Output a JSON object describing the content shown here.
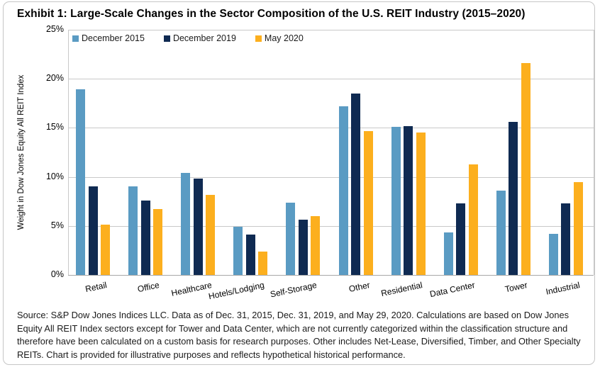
{
  "title": "Exhibit 1: Large-Scale Changes in the Sector Composition of the U.S. REIT Industry (2015–2020)",
  "footer": "Source: S&P Dow Jones Indices LLC. Data as of Dec. 31, 2015, Dec. 31, 2019, and May 29, 2020. Calculations are based on Dow Jones Equity All REIT Index sectors except for Tower and Data Center, which are not currently categorized within the classification structure and therefore have been calculated on a custom basis for research purposes. Other includes Net-Lease, Diversified, Timber, and Other Specialty REITs. Chart is provided for illustrative purposes and reflects hypothetical historical performance.",
  "chart_data": {
    "type": "bar",
    "title": "Exhibit 1: Large-Scale Changes in the Sector Composition of the U.S. REIT Industry (2015–2020)",
    "xlabel": "",
    "ylabel": "Weight in Dow Jones Equity All REIT Index",
    "ylim": [
      0,
      25
    ],
    "ytick_step": 5,
    "ytick_labels": [
      "0%",
      "5%",
      "10%",
      "15%",
      "20%",
      "25%"
    ],
    "grid": true,
    "legend_position": "top-left",
    "categories": [
      "Retail",
      "Office",
      "Healthcare",
      "Hotels/Lodging",
      "Self-Storage",
      "Other",
      "Residential",
      "Data Center",
      "Tower",
      "Industrial"
    ],
    "series": [
      {
        "name": "December 2015",
        "color": "#5A9BC3",
        "values": [
          18.9,
          9.0,
          10.4,
          4.9,
          7.4,
          17.2,
          15.1,
          4.3,
          8.6,
          4.2
        ]
      },
      {
        "name": "December 2019",
        "color": "#0F2A52",
        "values": [
          9.0,
          7.6,
          9.8,
          4.1,
          5.6,
          18.5,
          15.2,
          7.3,
          15.6,
          7.3
        ]
      },
      {
        "name": "May 2020",
        "color": "#FCAF1E",
        "values": [
          5.1,
          6.7,
          8.2,
          2.4,
          6.0,
          14.7,
          14.5,
          11.3,
          21.6,
          9.5
        ]
      }
    ],
    "colors": {
      "gridline": "#c9c9c9",
      "axis_line": "#a8a8a8",
      "card_border": "#c6c6c6"
    }
  }
}
